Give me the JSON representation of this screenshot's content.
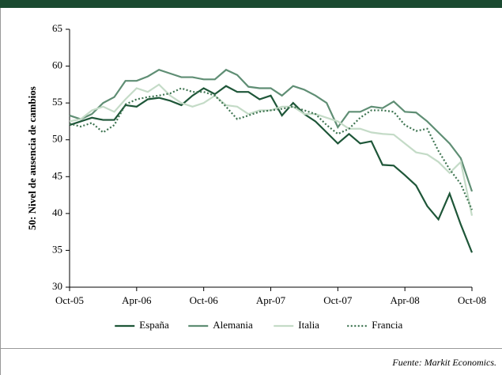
{
  "chart_data": {
    "type": "line",
    "y_label": "50: Nivel de ausencia de cambios",
    "source": "Fuente: Markit Economics.",
    "categories": [
      "Oct-05",
      null,
      null,
      null,
      null,
      null,
      "Apr-06",
      null,
      null,
      null,
      null,
      null,
      "Oct-06",
      null,
      null,
      null,
      null,
      null,
      "Apr-07",
      null,
      null,
      null,
      null,
      null,
      "Oct-07",
      null,
      null,
      null,
      null,
      null,
      "Apr-08",
      null,
      null,
      null,
      null,
      null,
      "Oct-08"
    ],
    "ylim": [
      30,
      65
    ],
    "yticks": [
      30,
      35,
      40,
      45,
      50,
      55,
      60,
      65
    ],
    "legend": "bottom",
    "series": [
      {
        "name": "España",
        "color": "#1e5638",
        "dash": "solid",
        "values": [
          52,
          52.5,
          53,
          52.7,
          52.7,
          54.7,
          54.5,
          55.5,
          55.7,
          55.3,
          54.7,
          56,
          57,
          56.2,
          57.3,
          56.5,
          56.5,
          55.5,
          56,
          53.3,
          55,
          53.5,
          52.5,
          51,
          49.5,
          50.8,
          49.5,
          49.8,
          46.6,
          46.5,
          45.2,
          43.8,
          41,
          39.2,
          42.7,
          38.5,
          34.7
        ]
      },
      {
        "name": "Alemania",
        "color": "#5f8e74",
        "dash": "solid",
        "values": [
          53.3,
          52.8,
          53.5,
          55,
          55.8,
          58,
          58,
          58.6,
          59.5,
          59,
          58.5,
          58.5,
          58.2,
          58.2,
          59.5,
          58.8,
          57.2,
          57,
          57,
          56,
          57.3,
          56.8,
          56,
          55,
          51.7,
          53.8,
          53.8,
          54.5,
          54.3,
          55.2,
          53.8,
          53.7,
          52.5,
          51,
          49.5,
          47.5,
          43
        ]
      },
      {
        "name": "Italia",
        "color": "#c4dbc7",
        "dash": "solid",
        "values": [
          52.5,
          52.8,
          54,
          54.5,
          53.8,
          55.5,
          57,
          56.5,
          57.5,
          56,
          55,
          54.5,
          55,
          56,
          54.7,
          54.5,
          53.5,
          54,
          54,
          54.5,
          54.5,
          53.5,
          53.5,
          53,
          52.5,
          51.5,
          51.5,
          51,
          50.8,
          50.7,
          49.5,
          48.3,
          48,
          47,
          45.5,
          47,
          39.7
        ]
      },
      {
        "name": "Francia",
        "color": "#3f7552",
        "dash": "dotted",
        "values": [
          52.2,
          51.8,
          52.3,
          51,
          52,
          54.8,
          55.5,
          55.8,
          56,
          56.3,
          57,
          56.5,
          56.5,
          56,
          54.5,
          52.8,
          53.3,
          53.8,
          54,
          54.2,
          54.5,
          54,
          53.5,
          52,
          50.8,
          51.5,
          53,
          54,
          54,
          53.8,
          52,
          51.2,
          51.5,
          48.5,
          46,
          44,
          40.5
        ]
      }
    ]
  }
}
